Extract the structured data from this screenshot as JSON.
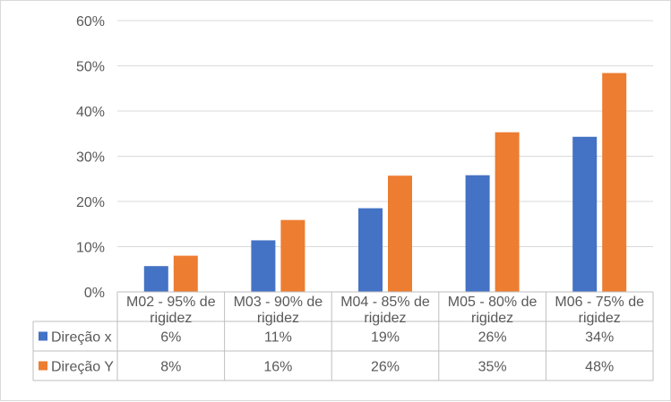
{
  "chart_data": {
    "type": "bar",
    "categories": [
      [
        "M02 - 95% de",
        "rigidez"
      ],
      [
        "M03 - 90% de",
        "rigidez"
      ],
      [
        "M04 - 85% de",
        "rigidez"
      ],
      [
        "M05 - 80% de",
        "rigidez"
      ],
      [
        "M06 - 75% de",
        "rigidez"
      ]
    ],
    "series": [
      {
        "name": "Direção x",
        "color": "#4472c4",
        "values": [
          5.7,
          11.4,
          18.5,
          25.8,
          34.3
        ],
        "labels": [
          "6%",
          "11%",
          "19%",
          "26%",
          "34%"
        ]
      },
      {
        "name": "Direção Y",
        "color": "#ed7d31",
        "values": [
          8.0,
          15.9,
          25.7,
          35.3,
          48.4
        ],
        "labels": [
          "8%",
          "16%",
          "26%",
          "35%",
          "48%"
        ]
      }
    ],
    "y_ticks": [
      "0%",
      "10%",
      "20%",
      "30%",
      "40%",
      "50%",
      "60%"
    ],
    "ylim": [
      0,
      60
    ],
    "y_unit": "%",
    "grid": true,
    "data_table": true,
    "title": "",
    "xlabel": "",
    "ylabel": ""
  }
}
